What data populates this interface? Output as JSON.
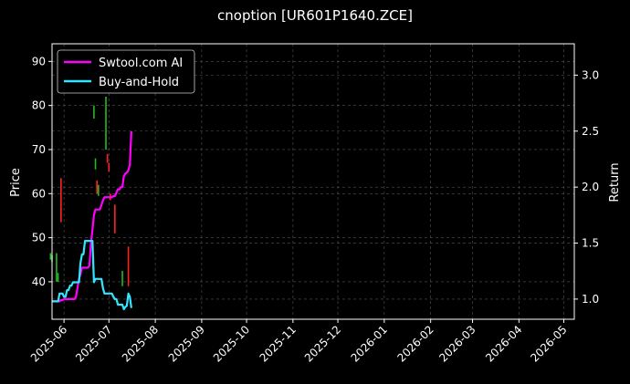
{
  "chart_data": {
    "type": "line",
    "title": "cnoption [UR601P1640.ZCE]",
    "ylabel": "Price",
    "y2label": "Return",
    "x_ticks": [
      "2025-06",
      "2025-07",
      "2025-08",
      "2025-09",
      "2025-10",
      "2025-11",
      "2025-12",
      "2026-01",
      "2026-02",
      "2026-03",
      "2026-04",
      "2026-05"
    ],
    "xlim": [
      "2025-05-24",
      "2026-05-08"
    ],
    "ylim": [
      31.5,
      94
    ],
    "y_ticks": [
      40,
      50,
      60,
      70,
      80,
      90
    ],
    "y2lim": [
      0.82,
      3.28
    ],
    "y2_ticks": [
      "1.0",
      "1.5",
      "2.0",
      "2.5",
      "3.0"
    ],
    "grid": true,
    "legend": {
      "position": "top-left",
      "entries": [
        "Swtool.com AI",
        "Buy-and-Hold"
      ]
    },
    "colors": {
      "ai": "#ff00ff",
      "bh": "#33e6ff",
      "up": "#ff2222",
      "down": "#22bb22",
      "grid": "#555555",
      "axes": "#ffffff"
    },
    "candles": [
      {
        "date": "2025-05-30",
        "high": 63.5,
        "low": 53.5,
        "dir": "up"
      },
      {
        "date": "2025-06-21",
        "high": 80.0,
        "low": 77.0,
        "dir": "down"
      },
      {
        "date": "2025-06-22",
        "high": 68.0,
        "low": 65.5,
        "dir": "down"
      },
      {
        "date": "2025-06-23",
        "high": 63.0,
        "low": 60.0,
        "dir": "up"
      },
      {
        "date": "2025-06-24",
        "high": 62.0,
        "low": 59.5,
        "dir": "down"
      },
      {
        "date": "2025-06-29",
        "high": 82.0,
        "low": 70.0,
        "dir": "down"
      },
      {
        "date": "2025-06-30",
        "high": 69.0,
        "low": 67.0,
        "dir": "up"
      },
      {
        "date": "2025-07-01",
        "high": 67.0,
        "low": 65.0,
        "dir": "up"
      },
      {
        "date": "2025-07-02",
        "high": 60.0,
        "low": 58.5,
        "dir": "up"
      },
      {
        "date": "2025-07-05",
        "high": 57.5,
        "low": 51.0,
        "dir": "up"
      },
      {
        "date": "2025-05-23",
        "high": 46.5,
        "low": 45.0,
        "dir": "down"
      },
      {
        "date": "2025-05-24",
        "high": 46.0,
        "low": 44.5,
        "dir": "down"
      },
      {
        "date": "2025-05-27",
        "high": 46.5,
        "low": 40.0,
        "dir": "down"
      },
      {
        "date": "2025-05-28",
        "high": 42.0,
        "low": 40.0,
        "dir": "down"
      },
      {
        "date": "2025-07-10",
        "high": 42.5,
        "low": 39.0,
        "dir": "down"
      },
      {
        "date": "2025-07-14",
        "high": 48.0,
        "low": 39.0,
        "dir": "up"
      }
    ],
    "series": [
      {
        "name": "Swtool.com AI",
        "x": [
          "2025-05-24",
          "2025-05-25",
          "2025-05-26",
          "2025-05-27",
          "2025-05-28",
          "2025-05-29",
          "2025-05-30",
          "2025-05-31",
          "2025-06-01",
          "2025-06-02",
          "2025-06-03",
          "2025-06-04",
          "2025-06-05",
          "2025-06-06",
          "2025-06-07",
          "2025-06-08",
          "2025-06-09",
          "2025-06-10",
          "2025-06-11",
          "2025-06-12",
          "2025-06-13",
          "2025-06-14",
          "2025-06-15",
          "2025-06-16",
          "2025-06-17",
          "2025-06-18",
          "2025-06-19",
          "2025-06-20",
          "2025-06-21",
          "2025-06-22",
          "2025-06-23",
          "2025-06-24",
          "2025-06-25",
          "2025-06-26",
          "2025-06-27",
          "2025-06-28",
          "2025-06-29",
          "2025-06-30",
          "2025-07-01",
          "2025-07-02",
          "2025-07-03",
          "2025-07-04",
          "2025-07-05",
          "2025-07-06",
          "2025-07-07",
          "2025-07-08",
          "2025-07-09",
          "2025-07-10",
          "2025-07-11",
          "2025-07-12",
          "2025-07-13",
          "2025-07-14",
          "2025-07-15",
          "2025-07-16"
        ],
        "y": [
          0.98,
          0.98,
          0.98,
          0.98,
          0.98,
          0.98,
          0.99,
          0.99,
          1.0,
          1.0,
          1.0,
          1.0,
          1.0,
          1.0,
          1.0,
          1.0,
          1.02,
          1.1,
          1.18,
          1.22,
          1.28,
          1.28,
          1.28,
          1.28,
          1.28,
          1.3,
          1.5,
          1.62,
          1.75,
          1.8,
          1.8,
          1.8,
          1.8,
          1.84,
          1.88,
          1.91,
          1.91,
          1.91,
          1.91,
          1.91,
          1.91,
          1.92,
          1.92,
          1.95,
          1.98,
          1.98,
          2.0,
          2.0,
          2.1,
          2.12,
          2.13,
          2.15,
          2.2,
          2.5
        ]
      },
      {
        "name": "Buy-and-Hold",
        "x": [
          "2025-05-24",
          "2025-05-25",
          "2025-05-26",
          "2025-05-27",
          "2025-05-28",
          "2025-05-29",
          "2025-05-30",
          "2025-05-31",
          "2025-06-01",
          "2025-06-02",
          "2025-06-03",
          "2025-06-04",
          "2025-06-05",
          "2025-06-06",
          "2025-06-07",
          "2025-06-08",
          "2025-06-09",
          "2025-06-10",
          "2025-06-11",
          "2025-06-12",
          "2025-06-13",
          "2025-06-14",
          "2025-06-15",
          "2025-06-16",
          "2025-06-17",
          "2025-06-18",
          "2025-06-19",
          "2025-06-20",
          "2025-06-21",
          "2025-06-22",
          "2025-06-23",
          "2025-06-24",
          "2025-06-25",
          "2025-06-26",
          "2025-06-27",
          "2025-06-28",
          "2025-06-29",
          "2025-06-30",
          "2025-07-01",
          "2025-07-02",
          "2025-07-03",
          "2025-07-04",
          "2025-07-05",
          "2025-07-06",
          "2025-07-07",
          "2025-07-08",
          "2025-07-09",
          "2025-07-10",
          "2025-07-11",
          "2025-07-12",
          "2025-07-13",
          "2025-07-14",
          "2025-07-15",
          "2025-07-16"
        ],
        "y": [
          0.98,
          0.98,
          0.98,
          0.98,
          0.98,
          1.05,
          1.05,
          1.05,
          1.02,
          1.02,
          1.08,
          1.08,
          1.12,
          1.12,
          1.15,
          1.15,
          1.15,
          1.15,
          1.15,
          1.32,
          1.4,
          1.4,
          1.52,
          1.52,
          1.52,
          1.52,
          1.52,
          1.52,
          1.15,
          1.18,
          1.18,
          1.18,
          1.18,
          1.18,
          1.1,
          1.05,
          1.05,
          1.05,
          1.05,
          1.05,
          1.05,
          1.02,
          1.0,
          1.0,
          0.95,
          0.95,
          0.95,
          0.95,
          0.91,
          0.93,
          0.94,
          1.05,
          1.02,
          0.92
        ]
      }
    ]
  }
}
